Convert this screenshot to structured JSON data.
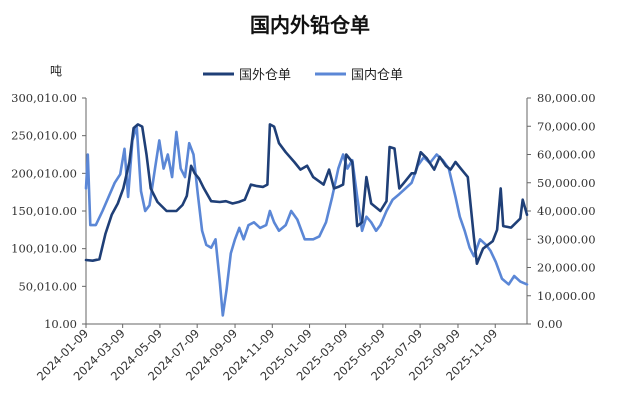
{
  "chart_data": {
    "type": "line",
    "title": "国内外铅仓单",
    "left_axis_unit": "吨",
    "left_axis_ticks": [
      "10.00",
      "50,010.00",
      "100,010.00",
      "150,010.00",
      "200,010.00",
      "250,010.00",
      "300,010.00"
    ],
    "left_axis_range": [
      10,
      300010
    ],
    "right_axis_ticks": [
      "0.00",
      "10,000.00",
      "20,000.00",
      "30,000.00",
      "40,000.00",
      "50,000.00",
      "60,000.00",
      "70,000.00",
      "80,000.00"
    ],
    "right_axis_range": [
      0,
      80000
    ],
    "x_tick_labels": [
      "2024-01-09",
      "2024-03-09",
      "2024-05-09",
      "2024-07-09",
      "2024-09-09",
      "2024-11-09",
      "2025-01-09",
      "2025-03-09",
      "2025-05-09",
      "2025-07-09",
      "2025-09-09",
      "2025-11-09"
    ],
    "x_range": [
      "2024-01-09",
      "2025-12-31"
    ],
    "legend_position": "top-center",
    "series": [
      {
        "name": "国外仓单",
        "axis": "left",
        "color": "#1f3f77",
        "points": [
          [
            "2024-01-09",
            85000
          ],
          [
            "2024-01-20",
            84000
          ],
          [
            "2024-01-31",
            86000
          ],
          [
            "2024-02-10",
            120000
          ],
          [
            "2024-02-20",
            145000
          ],
          [
            "2024-03-01",
            160000
          ],
          [
            "2024-03-10",
            180000
          ],
          [
            "2024-03-20",
            215000
          ],
          [
            "2024-03-27",
            260000
          ],
          [
            "2024-04-03",
            265000
          ],
          [
            "2024-04-10",
            262000
          ],
          [
            "2024-04-17",
            225000
          ],
          [
            "2024-04-24",
            180000
          ],
          [
            "2024-05-05",
            162000
          ],
          [
            "2024-05-20",
            150000
          ],
          [
            "2024-06-05",
            150000
          ],
          [
            "2024-06-15",
            158000
          ],
          [
            "2024-06-22",
            170000
          ],
          [
            "2024-06-29",
            210000
          ],
          [
            "2024-07-05",
            200000
          ],
          [
            "2024-07-12",
            193000
          ],
          [
            "2024-07-20",
            180000
          ],
          [
            "2024-08-01",
            163000
          ],
          [
            "2024-08-15",
            162000
          ],
          [
            "2024-08-25",
            163000
          ],
          [
            "2024-09-05",
            160000
          ],
          [
            "2024-09-15",
            162000
          ],
          [
            "2024-09-25",
            165000
          ],
          [
            "2024-10-05",
            185000
          ],
          [
            "2024-10-15",
            183000
          ],
          [
            "2024-10-25",
            182000
          ],
          [
            "2024-11-01",
            185000
          ],
          [
            "2024-11-05",
            265000
          ],
          [
            "2024-11-12",
            262000
          ],
          [
            "2024-11-20",
            240000
          ],
          [
            "2024-12-01",
            228000
          ],
          [
            "2024-12-15",
            215000
          ],
          [
            "2024-12-25",
            205000
          ],
          [
            "2025-01-05",
            210000
          ],
          [
            "2025-01-15",
            195000
          ],
          [
            "2025-02-01",
            185000
          ],
          [
            "2025-02-10",
            205000
          ],
          [
            "2025-02-18",
            180000
          ],
          [
            "2025-02-25",
            182000
          ],
          [
            "2025-03-05",
            185000
          ],
          [
            "2025-03-10",
            225000
          ],
          [
            "2025-03-20",
            215000
          ],
          [
            "2025-03-28",
            130000
          ],
          [
            "2025-04-05",
            135000
          ],
          [
            "2025-04-12",
            195000
          ],
          [
            "2025-04-20",
            160000
          ],
          [
            "2025-05-05",
            150000
          ],
          [
            "2025-05-15",
            163000
          ],
          [
            "2025-05-20",
            235000
          ],
          [
            "2025-05-28",
            233000
          ],
          [
            "2025-06-05",
            180000
          ],
          [
            "2025-06-15",
            190000
          ],
          [
            "2025-06-25",
            200000
          ],
          [
            "2025-07-01",
            200000
          ],
          [
            "2025-07-10",
            228000
          ],
          [
            "2025-07-20",
            220000
          ],
          [
            "2025-08-01",
            205000
          ],
          [
            "2025-08-10",
            222000
          ],
          [
            "2025-08-20",
            210000
          ],
          [
            "2025-08-28",
            205000
          ],
          [
            "2025-09-05",
            215000
          ],
          [
            "2025-09-15",
            205000
          ],
          [
            "2025-09-25",
            195000
          ],
          [
            "2025-10-05",
            115000
          ],
          [
            "2025-10-10",
            80000
          ],
          [
            "2025-10-20",
            100000
          ],
          [
            "2025-10-28",
            105000
          ],
          [
            "2025-11-05",
            110000
          ],
          [
            "2025-11-12",
            125000
          ],
          [
            "2025-11-18",
            180000
          ],
          [
            "2025-11-22",
            130000
          ],
          [
            "2025-12-05",
            128000
          ],
          [
            "2025-12-20",
            140000
          ],
          [
            "2025-12-24",
            165000
          ],
          [
            "2025-12-31",
            145000
          ]
        ]
      },
      {
        "name": "国内仓单",
        "axis": "right",
        "color": "#5b87d6",
        "points": [
          [
            "2024-01-09",
            48000
          ],
          [
            "2024-01-12",
            60000
          ],
          [
            "2024-01-16",
            35000
          ],
          [
            "2024-01-25",
            35000
          ],
          [
            "2024-02-05",
            40000
          ],
          [
            "2024-02-15",
            45000
          ],
          [
            "2024-02-25",
            50000
          ],
          [
            "2024-03-05",
            53000
          ],
          [
            "2024-03-12",
            62000
          ],
          [
            "2024-03-18",
            45000
          ],
          [
            "2024-03-25",
            65000
          ],
          [
            "2024-04-01",
            70000
          ],
          [
            "2024-04-08",
            47000
          ],
          [
            "2024-04-15",
            40000
          ],
          [
            "2024-04-22",
            42000
          ],
          [
            "2024-05-01",
            55000
          ],
          [
            "2024-05-08",
            65000
          ],
          [
            "2024-05-15",
            55000
          ],
          [
            "2024-05-22",
            60000
          ],
          [
            "2024-05-29",
            52000
          ],
          [
            "2024-06-05",
            68000
          ],
          [
            "2024-06-12",
            55000
          ],
          [
            "2024-06-19",
            52000
          ],
          [
            "2024-06-26",
            64000
          ],
          [
            "2024-07-03",
            60000
          ],
          [
            "2024-07-10",
            46000
          ],
          [
            "2024-07-17",
            33000
          ],
          [
            "2024-07-24",
            28000
          ],
          [
            "2024-08-01",
            27000
          ],
          [
            "2024-08-08",
            30000
          ],
          [
            "2024-08-15",
            15000
          ],
          [
            "2024-08-20",
            3000
          ],
          [
            "2024-08-26",
            12000
          ],
          [
            "2024-09-02",
            25000
          ],
          [
            "2024-09-09",
            30000
          ],
          [
            "2024-09-16",
            34000
          ],
          [
            "2024-09-23",
            30000
          ],
          [
            "2024-10-01",
            35000
          ],
          [
            "2024-10-10",
            36000
          ],
          [
            "2024-10-20",
            34000
          ],
          [
            "2024-10-30",
            35000
          ],
          [
            "2024-11-05",
            40000
          ],
          [
            "2024-11-12",
            36000
          ],
          [
            "2024-11-20",
            33000
          ],
          [
            "2024-12-01",
            35000
          ],
          [
            "2024-12-10",
            40000
          ],
          [
            "2024-12-20",
            37000
          ],
          [
            "2025-01-01",
            30000
          ],
          [
            "2025-01-15",
            30000
          ],
          [
            "2025-01-25",
            31000
          ],
          [
            "2025-02-05",
            36000
          ],
          [
            "2025-02-15",
            45000
          ],
          [
            "2025-02-25",
            55000
          ],
          [
            "2025-03-05",
            60000
          ],
          [
            "2025-03-12",
            55000
          ],
          [
            "2025-03-20",
            58000
          ],
          [
            "2025-03-28",
            45000
          ],
          [
            "2025-04-05",
            33000
          ],
          [
            "2025-04-12",
            38000
          ],
          [
            "2025-04-20",
            36000
          ],
          [
            "2025-04-28",
            33000
          ],
          [
            "2025-05-05",
            35000
          ],
          [
            "2025-05-15",
            40000
          ],
          [
            "2025-05-25",
            44000
          ],
          [
            "2025-06-05",
            46000
          ],
          [
            "2025-06-15",
            48000
          ],
          [
            "2025-06-25",
            50000
          ],
          [
            "2025-07-05",
            56000
          ],
          [
            "2025-07-15",
            59000
          ],
          [
            "2025-07-25",
            57000
          ],
          [
            "2025-08-05",
            60000
          ],
          [
            "2025-08-15",
            58000
          ],
          [
            "2025-08-25",
            55000
          ],
          [
            "2025-09-05",
            45000
          ],
          [
            "2025-09-12",
            38000
          ],
          [
            "2025-09-20",
            33000
          ],
          [
            "2025-09-28",
            27000
          ],
          [
            "2025-10-05",
            24000
          ],
          [
            "2025-10-15",
            30000
          ],
          [
            "2025-10-25",
            28000
          ],
          [
            "2025-11-01",
            26000
          ],
          [
            "2025-11-10",
            22000
          ],
          [
            "2025-11-20",
            16000
          ],
          [
            "2025-12-01",
            14000
          ],
          [
            "2025-12-10",
            17000
          ],
          [
            "2025-12-20",
            15000
          ],
          [
            "2025-12-31",
            14000
          ]
        ]
      }
    ]
  }
}
